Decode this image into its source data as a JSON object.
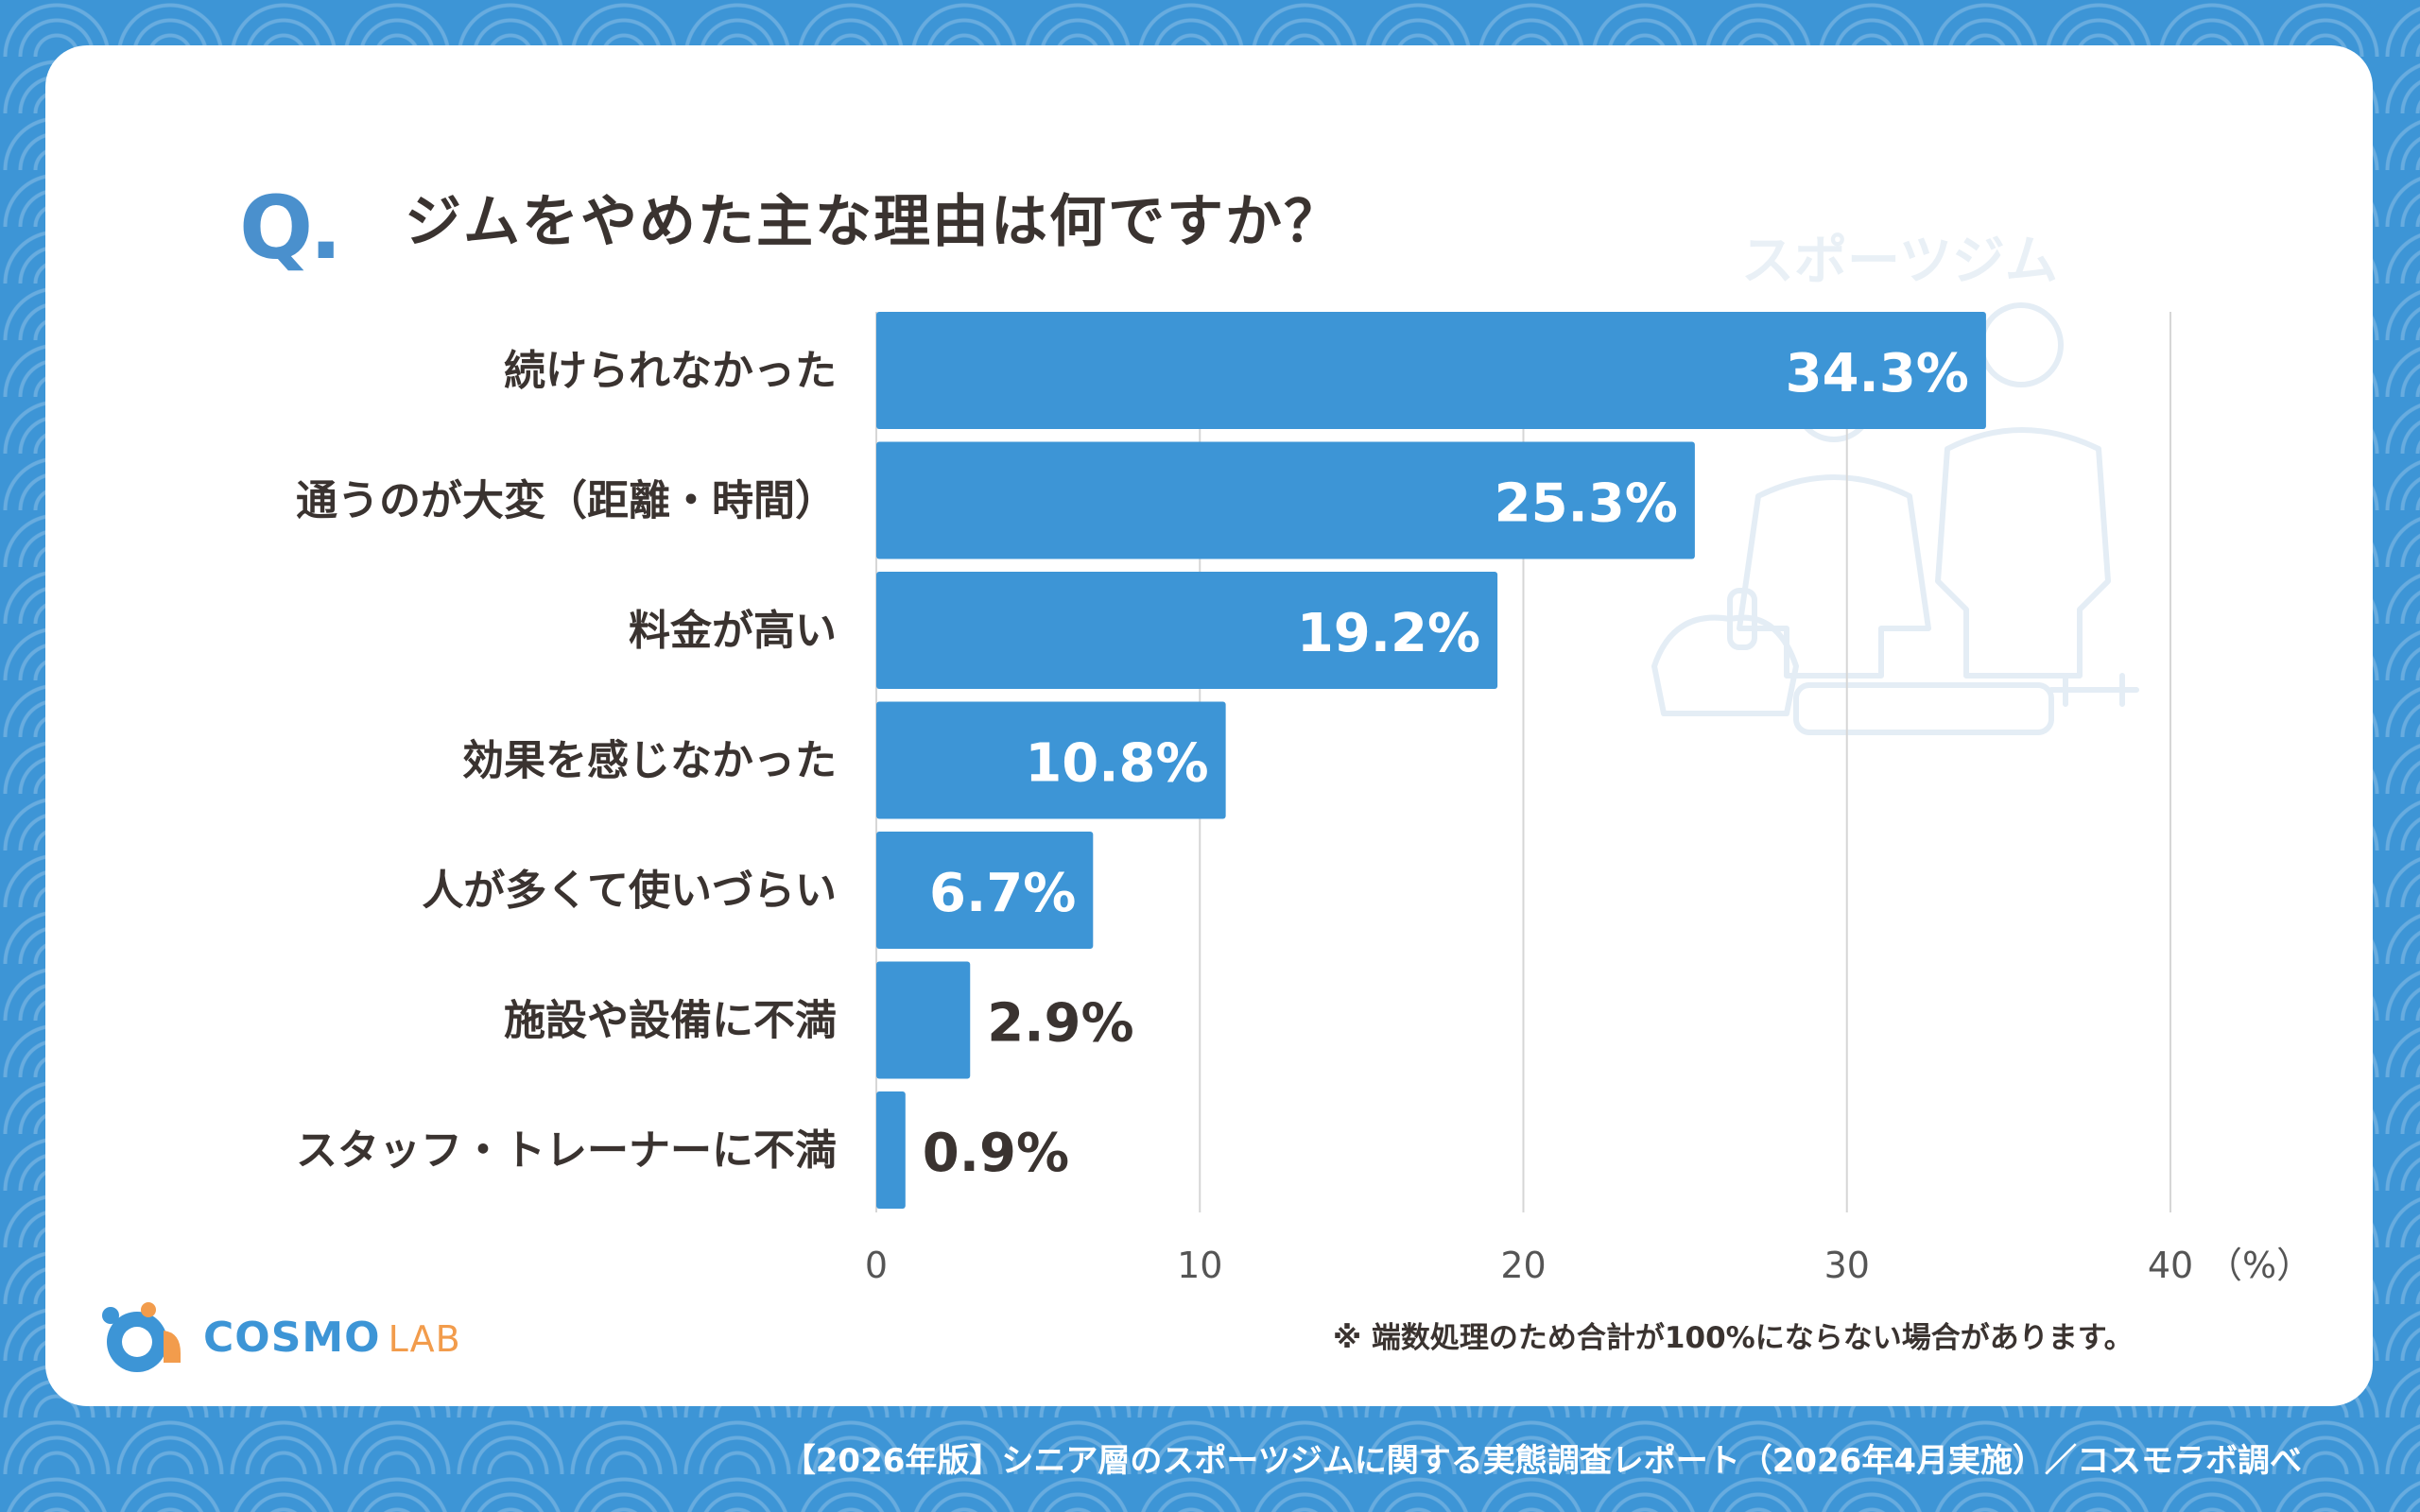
{
  "question": {
    "mark": "Q.",
    "title": "ジムをやめた主な理由は何ですか？"
  },
  "illustration": {
    "label": "スポーツジム"
  },
  "note": "※ 端数処理のため合計が100%にならない場合があります。",
  "source": "【2026年版】シニア層のスポーツジムに関する実態調査レポート（2026年4月実施）／コスモラボ調べ",
  "logo": {
    "main": "COSMO",
    "sub": "LAB"
  },
  "colors": {
    "bar": "#3d95d6",
    "text": "#3a3330",
    "accent": "#4a90cd",
    "orange": "#f29c4c"
  },
  "chart_data": {
    "type": "bar",
    "orientation": "horizontal",
    "categories": [
      "続けられなかった",
      "通うのが大変（距離・時間）",
      "料金が高い",
      "効果を感じなかった",
      "人が多くて使いづらい",
      "施設や設備に不満",
      "スタッフ・トレーナーに不満"
    ],
    "values": [
      34.3,
      25.3,
      19.2,
      10.8,
      6.7,
      2.9,
      0.9
    ],
    "value_labels": [
      "34.3%",
      "25.3%",
      "19.2%",
      "10.8%",
      "6.7%",
      "2.9%",
      "0.9%"
    ],
    "xlim": [
      0,
      40
    ],
    "xticks": [
      "0",
      "10",
      "20",
      "30",
      "40"
    ],
    "xunit": "（%）",
    "grid": true
  }
}
